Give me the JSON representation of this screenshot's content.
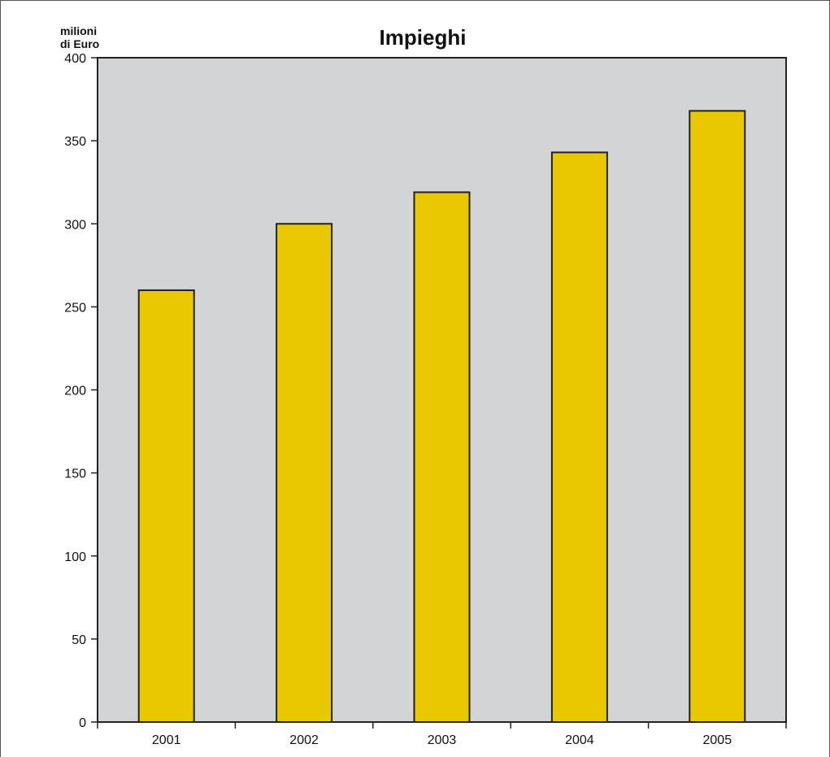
{
  "chart_data": {
    "type": "bar",
    "title": "Impieghi",
    "ylabel_line1": "milioni",
    "ylabel_line2": "di Euro",
    "xlabel": "",
    "categories": [
      "2001",
      "2002",
      "2003",
      "2004",
      "2005"
    ],
    "values": [
      260,
      300,
      319,
      343,
      368
    ],
    "ylim": [
      0,
      400
    ],
    "yticks": [
      0,
      50,
      100,
      150,
      200,
      250,
      300,
      350,
      400
    ],
    "grid": false,
    "colors": {
      "bar": "#E8C800",
      "plot_background": "#D3D4D6",
      "stroke": "#222222"
    }
  }
}
